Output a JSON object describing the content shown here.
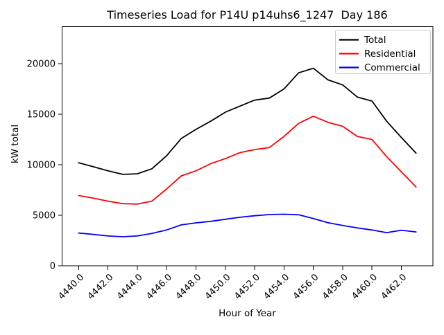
{
  "title": "Timeseries Load for P14U p14uhs6_1247  Day 186",
  "chart_data": {
    "type": "line",
    "title": "Timeseries Load for P14U p14uhs6_1247  Day 186",
    "xlabel": "Hour of Year",
    "ylabel": "kW total",
    "grid": false,
    "legend_position": "upper right",
    "xlim": [
      4438.85,
      4464.15
    ],
    "ylim": [
      0,
      23700
    ],
    "x_ticks": [
      4440,
      4442,
      4444,
      4446,
      4448,
      4450,
      4452,
      4454,
      4456,
      4458,
      4460,
      4462
    ],
    "x_tick_labels": [
      "4440.0",
      "4442.0",
      "4444.0",
      "4446.0",
      "4448.0",
      "4450.0",
      "4452.0",
      "4454.0",
      "4456.0",
      "4458.0",
      "4460.0",
      "4462.0"
    ],
    "y_ticks": [
      0,
      5000,
      10000,
      15000,
      20000
    ],
    "y_tick_labels": [
      "0",
      "5000",
      "10000",
      "15000",
      "20000"
    ],
    "x": [
      4440,
      4441,
      4442,
      4443,
      4444,
      4445,
      4446,
      4447,
      4448,
      4449,
      4450,
      4451,
      4452,
      4453,
      4454,
      4455,
      4456,
      4457,
      4458,
      4459,
      4460,
      4461,
      4462,
      4463
    ],
    "series": [
      {
        "name": "Total",
        "color": "#000000",
        "values": [
          10200,
          9800,
          9400,
          9050,
          9100,
          9600,
          10900,
          12600,
          13500,
          14300,
          15200,
          15800,
          16400,
          16600,
          17500,
          19100,
          19550,
          18400,
          17900,
          16700,
          16300,
          14300,
          12700,
          11150
        ]
      },
      {
        "name": "Residential",
        "color": "#ff0000",
        "values": [
          6950,
          6700,
          6400,
          6150,
          6100,
          6400,
          7600,
          8900,
          9400,
          10100,
          10600,
          11200,
          11500,
          11700,
          12800,
          14100,
          14800,
          14200,
          13800,
          12800,
          12500,
          10800,
          9300,
          7800
        ]
      },
      {
        "name": "Commercial",
        "color": "#0000ff",
        "values": [
          3250,
          3100,
          2950,
          2880,
          2950,
          3200,
          3550,
          4050,
          4250,
          4400,
          4600,
          4800,
          4950,
          5070,
          5100,
          5050,
          4680,
          4270,
          3990,
          3750,
          3540,
          3280,
          3520,
          3350
        ]
      }
    ]
  }
}
